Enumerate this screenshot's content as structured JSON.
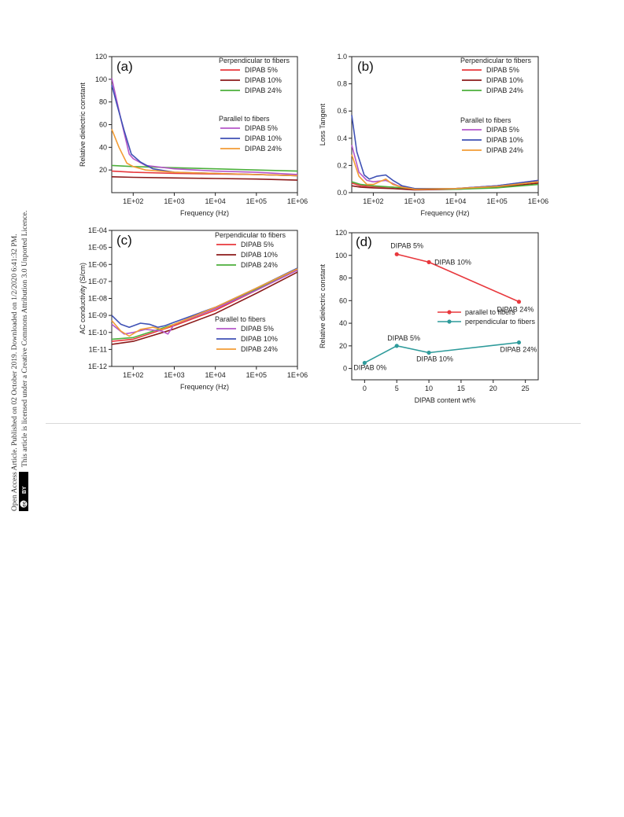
{
  "side_notice": {
    "line1": "Open Access Article. Published on 02 October 2019. Downloaded on 1/2/2020 6:41:32 PM.",
    "line2": "This article is licensed under a Creative Commons Attribution 3.0 Unported Licence.",
    "badge_cc": "cc",
    "badge_by": "BY"
  },
  "chart_data": [
    {
      "panel": "(a)",
      "type": "line",
      "xscale": "log",
      "xlim": [
        30,
        1000000
      ],
      "ylim": [
        0,
        120
      ],
      "xlabel": "Frequency (Hz)",
      "ylabel": "Relative dielectric constant",
      "xticks": [
        "1E+02",
        "1E+03",
        "1E+04",
        "1E+05",
        "1E+06"
      ],
      "xtick_values": [
        100,
        1000,
        10000,
        100000,
        1000000
      ],
      "yticks": [
        "20",
        "40",
        "60",
        "80",
        "100",
        "120"
      ],
      "ytick_values": [
        20,
        40,
        60,
        80,
        100,
        120
      ],
      "legend_groups": [
        "Perpendicular to fibers",
        "Parallel to fibers"
      ],
      "series": [
        {
          "name": "DIPAB 5%",
          "group": "Perpendicular to fibers",
          "color": "#e8383d",
          "x": [
            30,
            100,
            1000,
            10000,
            100000,
            1000000
          ],
          "y": [
            19,
            18,
            17,
            16.5,
            16,
            15
          ]
        },
        {
          "name": "DIPAB 10%",
          "group": "Perpendicular to fibers",
          "color": "#8b1a1a",
          "x": [
            30,
            100,
            1000,
            10000,
            100000,
            1000000
          ],
          "y": [
            14,
            13.5,
            13,
            12.5,
            12,
            11
          ]
        },
        {
          "name": "DIPAB 24%",
          "group": "Perpendicular to fibers",
          "color": "#4caf3c",
          "x": [
            30,
            100,
            1000,
            10000,
            100000,
            1000000
          ],
          "y": [
            24,
            23,
            22,
            21,
            20,
            19
          ]
        },
        {
          "name": "DIPAB 5%",
          "group": "Parallel to fibers",
          "color": "#b557c9",
          "x": [
            30,
            50,
            80,
            100,
            200,
            1000,
            10000,
            100000,
            1000000
          ],
          "y": [
            101,
            65,
            34,
            30,
            24,
            21,
            19,
            18,
            16
          ]
        },
        {
          "name": "DIPAB 10%",
          "group": "Parallel to fibers",
          "color": "#3f51b5",
          "x": [
            30,
            40,
            60,
            90,
            150,
            300,
            1000,
            10000,
            100000,
            1000000
          ],
          "y": [
            95,
            78,
            55,
            34,
            27,
            21,
            18,
            17,
            16,
            15
          ]
        },
        {
          "name": "DIPAB 24%",
          "group": "Parallel to fibers",
          "color": "#f39c34",
          "x": [
            30,
            45,
            70,
            100,
            200,
            1000,
            10000,
            100000,
            1000000
          ],
          "y": [
            56,
            40,
            26,
            23,
            20,
            18,
            17,
            16,
            15
          ]
        }
      ]
    },
    {
      "panel": "(b)",
      "type": "line",
      "xscale": "log",
      "xlim": [
        30,
        1000000
      ],
      "ylim": [
        0,
        1.0
      ],
      "xlabel": "Frequency (Hz)",
      "ylabel": "Loss Tangent",
      "xticks": [
        "1E+03",
        "1E+02",
        "1E+04",
        "1E+05",
        "1E+06"
      ],
      "xtick_values": [
        1000,
        100,
        10000,
        100000,
        1000000
      ],
      "yticks": [
        "0.0",
        "0.2",
        "0.4",
        "0.6",
        "0.8",
        "1.0"
      ],
      "ytick_values": [
        0,
        0.2,
        0.4,
        0.6,
        0.8,
        1.0
      ],
      "legend_groups": [
        "Perpendicular to fibers",
        "Parallel to fibers"
      ],
      "series": [
        {
          "name": "DIPAB 5%",
          "group": "Perpendicular to fibers",
          "color": "#e8383d",
          "x": [
            30,
            50,
            100,
            300,
            1000,
            10000,
            100000,
            1000000
          ],
          "y": [
            0.07,
            0.05,
            0.045,
            0.04,
            0.025,
            0.03,
            0.05,
            0.08
          ]
        },
        {
          "name": "DIPAB 10%",
          "group": "Perpendicular to fibers",
          "color": "#8b1a1a",
          "x": [
            30,
            50,
            100,
            300,
            1000,
            10000,
            100000,
            1000000
          ],
          "y": [
            0.05,
            0.04,
            0.035,
            0.03,
            0.02,
            0.025,
            0.04,
            0.07
          ]
        },
        {
          "name": "DIPAB 24%",
          "group": "Perpendicular to fibers",
          "color": "#4caf3c",
          "x": [
            30,
            50,
            100,
            300,
            1000,
            10000,
            100000,
            1000000
          ],
          "y": [
            0.08,
            0.06,
            0.05,
            0.04,
            0.03,
            0.025,
            0.035,
            0.06
          ]
        },
        {
          "name": "DIPAB 5%",
          "group": "Parallel to fibers",
          "color": "#b557c9",
          "x": [
            30,
            45,
            70,
            100,
            200,
            400,
            1000,
            10000,
            100000,
            1000000
          ],
          "y": [
            0.35,
            0.15,
            0.09,
            0.08,
            0.09,
            0.05,
            0.03,
            0.03,
            0.05,
            0.09
          ]
        },
        {
          "name": "DIPAB 10%",
          "group": "Parallel to fibers",
          "color": "#3f51b5",
          "x": [
            30,
            40,
            60,
            80,
            120,
            200,
            300,
            500,
            1000,
            10000,
            100000,
            1000000
          ],
          "y": [
            0.57,
            0.3,
            0.13,
            0.1,
            0.12,
            0.13,
            0.09,
            0.05,
            0.03,
            0.03,
            0.05,
            0.09
          ]
        },
        {
          "name": "DIPAB 24%",
          "group": "Parallel to fibers",
          "color": "#f39c34",
          "x": [
            30,
            45,
            70,
            100,
            200,
            300,
            500,
            1000,
            10000,
            100000,
            1000000
          ],
          "y": [
            0.28,
            0.12,
            0.06,
            0.06,
            0.1,
            0.06,
            0.04,
            0.025,
            0.03,
            0.045,
            0.08
          ]
        }
      ]
    },
    {
      "panel": "(c)",
      "type": "line",
      "xscale": "log",
      "yscale": "log",
      "xlim": [
        30,
        1000000
      ],
      "ylim": [
        1e-12,
        0.0001
      ],
      "xlabel": "Frequency (Hz)",
      "ylabel": "AC conductivity (S/cm)",
      "xticks": [
        "1E+02",
        "1E+03",
        "1E+04",
        "1E+05",
        "1E+06"
      ],
      "xtick_values": [
        100,
        1000,
        10000,
        100000,
        1000000
      ],
      "yticks": [
        "1E-12",
        "1E-11",
        "1E-10",
        "1E-09",
        "1E-08",
        "1E-07",
        "1E-06",
        "1E-05",
        "1E-04"
      ],
      "ytick_values": [
        1e-12,
        1e-11,
        1e-10,
        1e-09,
        1e-08,
        1e-07,
        1e-06,
        1e-05,
        0.0001
      ],
      "legend_groups": [
        "Perpendicular to fibers",
        "Parallel to fibers"
      ],
      "series": [
        {
          "name": "DIPAB 5%",
          "group": "Perpendicular to fibers",
          "color": "#e8383d",
          "x": [
            30,
            100,
            1000,
            10000,
            100000,
            1000000
          ],
          "y": [
            3e-11,
            4e-11,
            2.5e-10,
            2e-09,
            3e-08,
            5e-07
          ]
        },
        {
          "name": "DIPAB 10%",
          "group": "Perpendicular to fibers",
          "color": "#8b1a1a",
          "x": [
            30,
            100,
            1000,
            10000,
            100000,
            1000000
          ],
          "y": [
            2e-11,
            3e-11,
            1.6e-10,
            1.3e-09,
            2e-08,
            3.5e-07
          ]
        },
        {
          "name": "DIPAB 24%",
          "group": "Perpendicular to fibers",
          "color": "#4caf3c",
          "x": [
            30,
            100,
            1000,
            10000,
            100000,
            1000000
          ],
          "y": [
            4e-11,
            5e-11,
            3e-10,
            2.5e-09,
            3.5e-08,
            5.5e-07
          ]
        },
        {
          "name": "DIPAB 5%",
          "group": "Parallel to fibers",
          "color": "#b557c9",
          "x": [
            30,
            60,
            100,
            200,
            500,
            700,
            1000,
            10000,
            100000,
            1000000
          ],
          "y": [
            3e-10,
            8e-11,
            1e-10,
            1.5e-10,
            1.2e-10,
            8e-11,
            3e-10,
            2.5e-09,
            3e-08,
            4.5e-07
          ]
        },
        {
          "name": "DIPAB 10%",
          "group": "Parallel to fibers",
          "color": "#3f51b5",
          "x": [
            30,
            50,
            80,
            150,
            250,
            400,
            600,
            1000,
            10000,
            100000,
            1000000
          ],
          "y": [
            1e-09,
            3e-10,
            2e-10,
            3.5e-10,
            3e-10,
            2e-10,
            2.5e-10,
            4e-10,
            3e-09,
            4e-08,
            6e-07
          ]
        },
        {
          "name": "DIPAB 24%",
          "group": "Parallel to fibers",
          "color": "#f39c34",
          "x": [
            30,
            50,
            80,
            150,
            300,
            500,
            1000,
            10000,
            100000,
            1000000
          ],
          "y": [
            5e-10,
            1.2e-10,
            6e-11,
            1.5e-10,
            2e-10,
            1.5e-10,
            3e-10,
            3e-09,
            4e-08,
            5.5e-07
          ]
        }
      ]
    },
    {
      "panel": "(d)",
      "type": "line",
      "xlim": [
        -2,
        27
      ],
      "ylim": [
        -10,
        120
      ],
      "xlabel": "DIPAB content wt%",
      "ylabel": "Relative dielectric constant",
      "xticks": [
        "0",
        "5",
        "10",
        "15",
        "20",
        "25"
      ],
      "xtick_values": [
        0,
        5,
        10,
        15,
        20,
        25
      ],
      "yticks": [
        "0",
        "20",
        "40",
        "60",
        "80",
        "100",
        "120"
      ],
      "ytick_values": [
        0,
        20,
        40,
        60,
        80,
        100,
        120
      ],
      "series": [
        {
          "name": "parallel to fibers",
          "color": "#e8383d",
          "x": [
            5,
            10,
            24
          ],
          "y": [
            101,
            94,
            59
          ]
        },
        {
          "name": "perpendicular to fibers",
          "color": "#2e9b9b",
          "x": [
            0,
            5,
            10,
            24
          ],
          "y": [
            5,
            20,
            14,
            23
          ]
        }
      ],
      "annotations": [
        {
          "text": "DIPAB 5%",
          "x": 5,
          "y": 101
        },
        {
          "text": "DIPAB 10%",
          "x": 10,
          "y": 94
        },
        {
          "text": "DIPAB 24%",
          "x": 24,
          "y": 59
        },
        {
          "text": "DIPAB 5%",
          "x": 5,
          "y": 20
        },
        {
          "text": "DIPAB 10%",
          "x": 10,
          "y": 14
        },
        {
          "text": "DIPAB 24%",
          "x": 24,
          "y": 23
        },
        {
          "text": "DIPAB 0%",
          "x": 0,
          "y": 5
        }
      ]
    }
  ]
}
